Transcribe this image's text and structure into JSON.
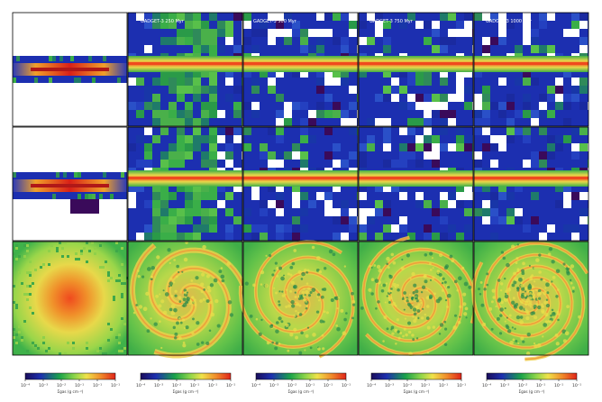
{
  "figure": {
    "panel_titles": [
      "",
      "GADGET-3 250 Myr",
      "GADGET-3 500 Myr",
      "GADGET-3 750 Myr",
      "GADGET-3 1000 Myr"
    ],
    "colorbar": {
      "tick_labels": [
        "10⁻⁴",
        "10⁻³",
        "10⁻²",
        "10⁻¹",
        "10⁻¹",
        "10⁻¹"
      ],
      "label": "Σgas (g cm⁻²)",
      "colors": [
        "#1a0d5a",
        "#1c2fb0",
        "#1aa34a",
        "#8fd64a",
        "#f0e24a",
        "#f08a2a",
        "#e0241a"
      ]
    },
    "rows": [
      "edge-on-x",
      "edge-on-y",
      "face-on"
    ]
  }
}
